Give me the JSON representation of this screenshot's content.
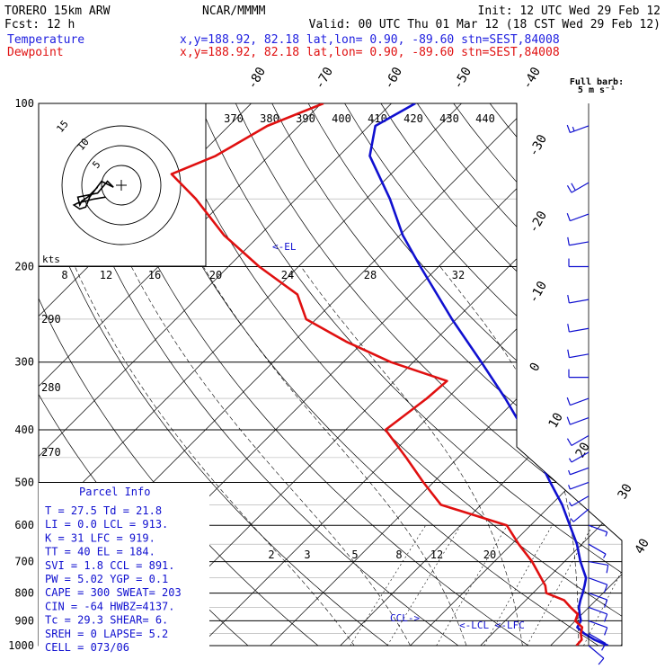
{
  "header": {
    "model": "TORERO  15km ARW",
    "org": "NCAR/MMMM",
    "init": "Init: 12 UTC Wed 29 Feb 12",
    "fcst": "Fcst:   12 h",
    "valid": "Valid: 00 UTC Thu 01 Mar 12 (18 CST Wed 29 Feb 12)",
    "temperature_label": "Temperature",
    "dewpoint_label": "Dewpoint",
    "temperature_loc": "x,y=188.92, 82.18   lat,lon=  0.90, -89.60  stn=SEST,84008",
    "dewpoint_loc": "x,y=188.92, 82.18   lat,lon=  0.90, -89.60  stn=SEST,84008"
  },
  "colors": {
    "temperature": "#1010d0",
    "dewpoint": "#e01010",
    "header_blue": "#2020e0",
    "header_red": "#e01010"
  },
  "barb_legend": {
    "line1": "Full barb:",
    "line2": "5 m s⁻¹"
  },
  "hodograph": {
    "units_label": "kts",
    "ring_labels": [
      "5",
      "10",
      "15"
    ]
  },
  "annotations": {
    "el": "<-EL",
    "ccl": "CCL->",
    "lcl_lfc": "<-LCL <-LFC"
  },
  "parcel_info": {
    "title": "Parcel Info",
    "rows": [
      "T  =    27.5  Td =  21.8",
      "LI =     0.0  LCL =  913.",
      "K  =     31  LFC =  919.",
      "TT =     40  EL  =  184.",
      "SVI =   1.8  CCL =  891.",
      "PW =   5.02  YGP =   0.1",
      "CAPE =  300  SWEAT=  203",
      "CIN =   -64  HWBZ=4137.",
      "Tc =   29.3  SHEAR=   6.",
      "SREH =    0  LAPSE=  5.2",
      "CELL = 073/06"
    ]
  },
  "chart_data": {
    "type": "line",
    "diagram": "skew-T log-p",
    "yaxis": {
      "label": "",
      "scale": "log",
      "ticks": [
        100,
        200,
        300,
        400,
        500,
        600,
        700,
        800,
        900,
        1000
      ]
    },
    "isotherm_labels": [
      "-80",
      "-70",
      "-60",
      "-50",
      "-40",
      "-30",
      "-20",
      "-10",
      "0",
      "10",
      "20",
      "30",
      "40"
    ],
    "theta_labels": [
      "370",
      "380",
      "390",
      "400",
      "410",
      "420",
      "430",
      "440"
    ],
    "theta_left_labels": [
      "290",
      "280",
      "270"
    ],
    "mixing_ratio_labels": [
      "2",
      "3",
      "5",
      "8",
      "12",
      "20"
    ],
    "wetbulb_labels": [
      "8",
      "12",
      "16",
      "20",
      "24",
      "28",
      "32"
    ],
    "grid": true,
    "series": [
      {
        "name": "Temperature",
        "points": [
          [
            1000,
            28.2
          ],
          [
            975,
            25.4
          ],
          [
            950,
            23.1
          ],
          [
            925,
            21.2
          ],
          [
            900,
            20.8
          ],
          [
            880,
            19.9
          ],
          [
            850,
            18.6
          ],
          [
            825,
            17.8
          ],
          [
            800,
            17.1
          ],
          [
            775,
            16.3
          ],
          [
            750,
            15.4
          ],
          [
            700,
            12.3
          ],
          [
            650,
            9.3
          ],
          [
            600,
            5.6
          ],
          [
            550,
            1.6
          ],
          [
            500,
            -3.3
          ],
          [
            450,
            -8.6
          ],
          [
            400,
            -14.6
          ],
          [
            350,
            -21.7
          ],
          [
            300,
            -30.3
          ],
          [
            250,
            -40.6
          ],
          [
            200,
            -52.6
          ],
          [
            175,
            -59.6
          ],
          [
            150,
            -66.6
          ],
          [
            125,
            -75.6
          ],
          [
            110,
            -79.1
          ],
          [
            100,
            -76.6
          ]
        ]
      },
      {
        "name": "Dewpoint",
        "points": [
          [
            1000,
            23.7
          ],
          [
            975,
            23.6
          ],
          [
            950,
            22.6
          ],
          [
            925,
            21.9
          ],
          [
            900,
            20.0
          ],
          [
            875,
            19.4
          ],
          [
            850,
            17.4
          ],
          [
            825,
            15.5
          ],
          [
            800,
            11.9
          ],
          [
            775,
            10.7
          ],
          [
            750,
            9.0
          ],
          [
            700,
            5.4
          ],
          [
            650,
            1.0
          ],
          [
            600,
            -3.4
          ],
          [
            550,
            -15.7
          ],
          [
            500,
            -21.4
          ],
          [
            450,
            -27.4
          ],
          [
            400,
            -34.3
          ],
          [
            350,
            -32.9
          ],
          [
            325,
            -32.5
          ],
          [
            300,
            -43.2
          ],
          [
            275,
            -52.5
          ],
          [
            250,
            -61.4
          ],
          [
            225,
            -66.2
          ],
          [
            200,
            -75.6
          ],
          [
            175,
            -85.1
          ],
          [
            150,
            -94.3
          ],
          [
            135,
            -101.3
          ],
          [
            125,
            -97.6
          ],
          [
            110,
            -94.5
          ],
          [
            100,
            -89.7
          ]
        ]
      }
    ],
    "wind_barbs": {
      "units": "m s-1",
      "levels": [
        [
          110,
          250,
          8
        ],
        [
          140,
          240,
          10
        ],
        [
          160,
          250,
          7
        ],
        [
          180,
          260,
          6
        ],
        [
          200,
          270,
          5
        ],
        [
          230,
          260,
          5
        ],
        [
          260,
          260,
          6
        ],
        [
          290,
          260,
          5
        ],
        [
          320,
          270,
          6
        ],
        [
          350,
          250,
          6
        ],
        [
          380,
          250,
          5
        ],
        [
          410,
          240,
          5
        ],
        [
          440,
          240,
          4
        ],
        [
          470,
          250,
          4
        ],
        [
          500,
          250,
          4
        ],
        [
          530,
          240,
          4
        ],
        [
          560,
          230,
          4
        ],
        [
          600,
          110,
          3
        ],
        [
          650,
          120,
          3
        ],
        [
          700,
          100,
          5
        ],
        [
          750,
          110,
          6
        ],
        [
          800,
          110,
          7
        ],
        [
          850,
          110,
          7
        ],
        [
          900,
          110,
          7
        ],
        [
          950,
          120,
          6
        ],
        [
          1000,
          130,
          5
        ]
      ]
    },
    "hodograph": {
      "units": "kts",
      "rings": [
        5,
        10,
        15
      ],
      "uv": [
        [
          -4,
          -3
        ],
        [
          -7,
          -3.5
        ],
        [
          -9,
          -4
        ],
        [
          -11,
          -4.5
        ],
        [
          -12,
          -5
        ],
        [
          -10.5,
          -6
        ],
        [
          -9,
          -5.5
        ],
        [
          -8,
          -3
        ],
        [
          -6.5,
          -1
        ],
        [
          -5,
          1
        ],
        [
          -2,
          -0.5
        ],
        [
          -3.5,
          1
        ],
        [
          -6,
          -2
        ],
        [
          -11,
          -3
        ],
        [
          -10.5,
          -5
        ],
        [
          -10,
          -4
        ],
        [
          -8.5,
          -3
        ],
        [
          -6,
          -0.5
        ]
      ]
    }
  }
}
